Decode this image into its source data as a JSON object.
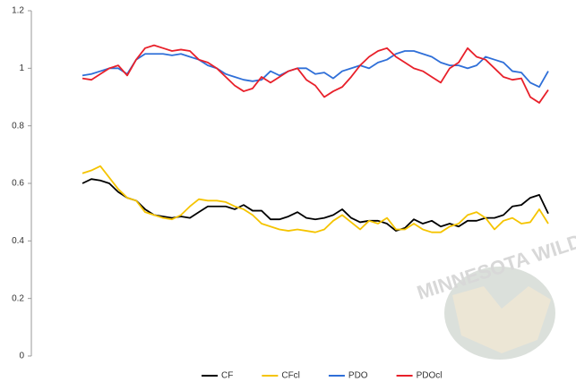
{
  "chart_data": {
    "type": "line",
    "watermark": "MINNESOTA WILD",
    "categories": [
      null,
      null,
      null,
      null,
      null,
      null,
      null,
      null,
      null,
      null,
      null,
      null,
      null,
      null,
      null,
      null,
      null,
      null,
      null,
      null,
      null,
      null,
      null,
      null,
      null,
      null,
      null,
      null,
      null,
      null,
      null,
      null,
      null,
      null,
      null,
      null,
      null,
      null,
      null,
      null,
      null,
      null,
      null,
      null,
      null,
      null,
      null,
      null,
      null,
      null,
      null,
      null,
      null
    ],
    "series": [
      {
        "name": "CF",
        "color": "#000000",
        "values": [
          0.6,
          0.615,
          0.61,
          0.6,
          0.57,
          0.55,
          0.54,
          0.51,
          0.49,
          0.485,
          0.48,
          0.485,
          0.48,
          0.5,
          0.52,
          0.52,
          0.52,
          0.51,
          0.525,
          0.505,
          0.505,
          0.475,
          0.475,
          0.485,
          0.5,
          0.48,
          0.475,
          0.48,
          0.49,
          0.51,
          0.48,
          0.465,
          0.47,
          0.47,
          0.46,
          0.435,
          0.445,
          0.475,
          0.46,
          0.47,
          0.45,
          0.46,
          0.45,
          0.47,
          0.47,
          0.48,
          0.48,
          0.49,
          0.52,
          0.525,
          0.55,
          0.56,
          0.495
        ]
      },
      {
        "name": "CFcl",
        "color": "#f5c400",
        "values": [
          0.635,
          0.645,
          0.66,
          0.62,
          0.58,
          0.55,
          0.54,
          0.5,
          0.49,
          0.48,
          0.475,
          0.49,
          0.52,
          0.545,
          0.54,
          0.54,
          0.535,
          0.52,
          0.51,
          0.49,
          0.46,
          0.45,
          0.44,
          0.435,
          0.44,
          0.435,
          0.43,
          0.44,
          0.47,
          0.49,
          0.465,
          0.44,
          0.47,
          0.46,
          0.48,
          0.44,
          0.44,
          0.46,
          0.44,
          0.43,
          0.43,
          0.45,
          0.46,
          0.49,
          0.5,
          0.48,
          0.44,
          0.47,
          0.48,
          0.46,
          0.465,
          0.51,
          0.46
        ]
      },
      {
        "name": "PDO",
        "color": "#2f6fd8",
        "values": [
          0.975,
          0.98,
          0.99,
          1.0,
          1.0,
          0.98,
          1.03,
          1.05,
          1.05,
          1.05,
          1.045,
          1.05,
          1.04,
          1.03,
          1.01,
          1.0,
          0.98,
          0.97,
          0.96,
          0.955,
          0.96,
          0.99,
          0.975,
          0.99,
          1.0,
          1.0,
          0.98,
          0.985,
          0.965,
          0.99,
          1.0,
          1.01,
          1.0,
          1.02,
          1.03,
          1.05,
          1.06,
          1.06,
          1.05,
          1.04,
          1.02,
          1.01,
          1.01,
          1.0,
          1.01,
          1.04,
          1.03,
          1.02,
          0.99,
          0.985,
          0.95,
          0.935,
          0.99
        ]
      },
      {
        "name": "PDOcl",
        "color": "#e8202a",
        "values": [
          0.965,
          0.96,
          0.98,
          1.0,
          1.01,
          0.975,
          1.03,
          1.07,
          1.08,
          1.07,
          1.06,
          1.065,
          1.06,
          1.03,
          1.02,
          1.0,
          0.97,
          0.94,
          0.92,
          0.93,
          0.97,
          0.95,
          0.97,
          0.99,
          1.0,
          0.96,
          0.94,
          0.9,
          0.92,
          0.935,
          0.97,
          1.01,
          1.04,
          1.06,
          1.07,
          1.04,
          1.02,
          1.0,
          0.99,
          0.97,
          0.95,
          1.0,
          1.02,
          1.07,
          1.04,
          1.03,
          1.0,
          0.97,
          0.96,
          0.965,
          0.9,
          0.88,
          0.925
        ]
      }
    ],
    "ylim": [
      0,
      1.2
    ],
    "yticks": [
      0,
      0.2,
      0.4,
      0.6,
      0.8,
      1,
      1.2
    ],
    "grid": false,
    "legend": "bottom"
  }
}
